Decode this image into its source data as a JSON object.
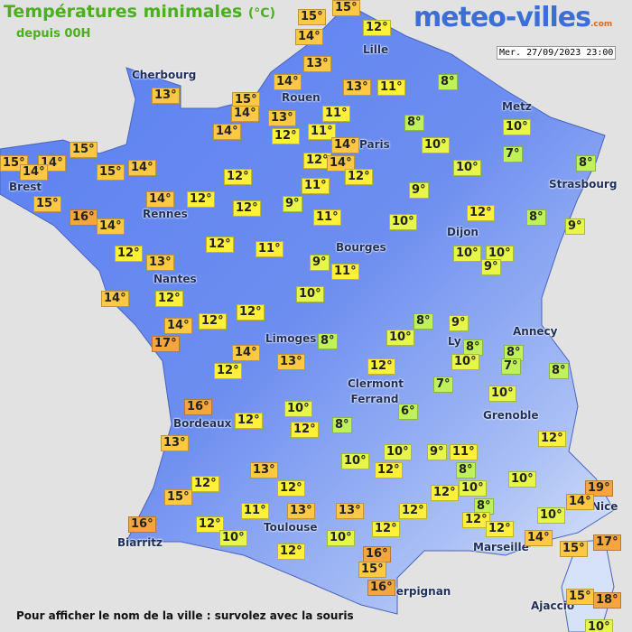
{
  "header": {
    "title": "Températures minimales",
    "unit": "(°C)",
    "subtitle": "depuis 00H",
    "logo": "meteo-villes",
    "logo_suffix": ".com",
    "timestamp": "Mer. 27/09/2023 23:00"
  },
  "cities": [
    "Lille",
    "Cherbourg",
    "Rouen",
    "Metz",
    "Paris",
    "Strasbourg",
    "Brest",
    "Rennes",
    "Dijon",
    "Bourges",
    "Nantes",
    "Annecy",
    "Limoges",
    "Ly",
    "Clermont Ferrand",
    "Grenoble",
    "Bordeaux",
    "Nice",
    "Toulouse",
    "Marseille",
    "Biarritz",
    "Perpignan",
    "Ajaccio"
  ],
  "temperatures": [
    "15°",
    "15°",
    "12°",
    "14°",
    "13°",
    "14°",
    "13°",
    "11°",
    "8°",
    "13°",
    "15°",
    "14°",
    "13°",
    "11°",
    "8°",
    "10°",
    "14°",
    "11°",
    "12°",
    "14°",
    "10°",
    "7°",
    "15°",
    "15°",
    "14°",
    "14°",
    "15°",
    "14°",
    "12°",
    "14°",
    "10°",
    "8°",
    "12°",
    "12°",
    "11°",
    "9°",
    "15°",
    "14°",
    "12°",
    "9°",
    "12°",
    "16°",
    "14°",
    "11°",
    "10°",
    "12°",
    "8°",
    "9°",
    "12°",
    "13°",
    "12°",
    "11°",
    "9°",
    "11°",
    "10°",
    "10°",
    "9°",
    "14°",
    "12°",
    "10°",
    "12°",
    "14°",
    "12°",
    "8°",
    "9°",
    "17°",
    "14°",
    "8°",
    "10°",
    "8°",
    "8°",
    "12°",
    "13°",
    "10°",
    "7°",
    "8°",
    "12°",
    "7°",
    "10°",
    "6°",
    "16°",
    "10°",
    "12°",
    "12°",
    "8°",
    "13°",
    "12°",
    "10°",
    "9°",
    "11°",
    "10°",
    "12°",
    "8°",
    "13°",
    "10°",
    "12°",
    "12°",
    "12°",
    "10°",
    "19°",
    "15°",
    "14°",
    "11°",
    "13°",
    "13°",
    "12°",
    "8°",
    "12°",
    "10°",
    "16°",
    "12°",
    "12°",
    "12°",
    "10°",
    "10°",
    "14°",
    "17°",
    "15°",
    "12°",
    "16°",
    "15°",
    "16°",
    "15°",
    "18°",
    "10°"
  ],
  "footer": "Pour afficher le nom de la ville : survolez avec la souris"
}
